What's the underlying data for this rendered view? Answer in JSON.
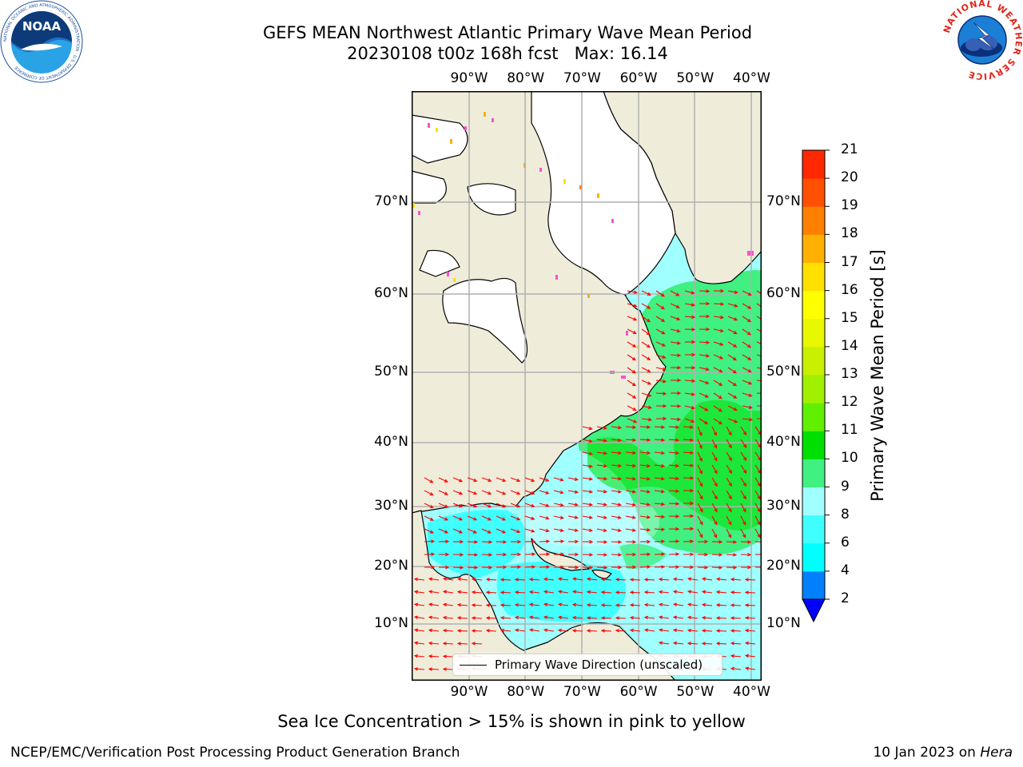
{
  "header": {
    "title_line1": "GEFS MEAN Northwest Atlantic Primary Wave Mean Period",
    "title_line2": "20230108 t00z 168h fcst   Max: 16.14"
  },
  "logos": {
    "noaa_text": "NOAA",
    "noaa_ring_text": "NATIONAL OCEANIC AND ATMOSPHERIC ADMINISTRATION · U.S. DEPARTMENT OF COMMERCE",
    "nws_ring_text": "NATIONAL WEATHER SERVICE"
  },
  "map": {
    "lon_labels": [
      "90°W",
      "80°W",
      "70°W",
      "60°W",
      "50°W",
      "40°W"
    ],
    "lat_labels": [
      "70°N",
      "60°N",
      "50°N",
      "40°N",
      "30°N",
      "20°N",
      "10°N"
    ],
    "lon_values": [
      -90,
      -80,
      -70,
      -60,
      -50,
      -40
    ],
    "lat_values": [
      70,
      60,
      50,
      40,
      30,
      20,
      10
    ],
    "legend_label": "Primary Wave Direction (unscaled)",
    "colors": {
      "land": "#efedda",
      "ice_free_white": "#ffffff",
      "coast": "#000000",
      "grid": "#b0b0b0",
      "arrow": "#ff0000"
    }
  },
  "colorbar": {
    "label": "Primary Wave Mean Period [s]",
    "ticks": [
      2,
      4,
      6,
      8,
      9,
      10,
      11,
      12,
      13,
      14,
      15,
      16,
      17,
      18,
      19,
      20,
      21
    ],
    "tick_labels": [
      "2",
      "4",
      "6",
      "8",
      "9",
      "10",
      "11",
      "12",
      "13",
      "14",
      "15",
      "16",
      "17",
      "18",
      "19",
      "20",
      "21"
    ],
    "colors": [
      "#0080ff",
      "#00ffff",
      "#40ffff",
      "#a0ffff",
      "#40f080",
      "#00e000",
      "#60f000",
      "#a0f000",
      "#c8f000",
      "#e8f800",
      "#ffff00",
      "#ffe000",
      "#ffb000",
      "#ff8000",
      "#ff5000",
      "#ff2800",
      "#ff0000"
    ],
    "under_color": "#0000ff"
  },
  "footer": {
    "ice_note": "Sea Ice Concentration > 15% is shown in pink to yellow",
    "left": "NCEP/EMC/Verification Post Processing Product Generation Branch",
    "right_date": "10 Jan 2023 on ",
    "right_host": "Hera"
  }
}
